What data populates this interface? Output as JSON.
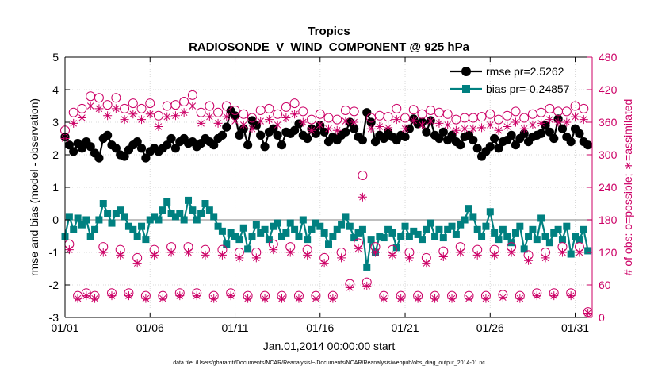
{
  "chart_data": {
    "type": "line",
    "title": "Tropics",
    "subtitle": "RADIOSONDE_V_WIND_COMPONENT @ 925 hPa",
    "xlabel": "Jan.01,2014 00:00:00 start",
    "ylabel": "rmse and bias (model - observation)",
    "ylabel_right": "# of obs: o=possible; ∗=assimilated",
    "footnote": "data file: /Users/gharamti/Documents/NCAR/Reanalysis/~/Documents/NCAR/Reanalysis/webpub/obs_diag_output_2014-01.nc",
    "xlim": [
      1,
      32
    ],
    "ylim": [
      -3,
      5
    ],
    "ylim_right": [
      0,
      480
    ],
    "x_ticks": [
      1,
      6,
      11,
      16,
      21,
      26,
      31
    ],
    "x_tick_labels": [
      "01/01",
      "01/06",
      "01/11",
      "01/16",
      "01/21",
      "01/26",
      "01/31"
    ],
    "y_ticks": [
      -3,
      -2,
      -1,
      0,
      1,
      2,
      3,
      4,
      5
    ],
    "y_tick_labels": [
      "-3",
      "-2",
      "-1",
      "0",
      "1",
      "2",
      "3",
      "4",
      "5"
    ],
    "y_ticks_right": [
      0,
      60,
      120,
      180,
      240,
      300,
      360,
      420,
      480
    ],
    "y_tick_labels_right": [
      "0",
      "60",
      "120",
      "180",
      "240",
      "300",
      "360",
      "420",
      "480"
    ],
    "grid": true,
    "zero_line": true,
    "colors": {
      "rmse": "#000000",
      "bias": "#008080",
      "obs": "#cc0066",
      "zero": "#aaaaaa",
      "grid": "#d9d9d9"
    },
    "series": [
      {
        "name": "rmse",
        "legend": "rmse pr=2.5262",
        "color": "#000000",
        "marker": "circle",
        "x": [
          1.0,
          1.25,
          1.5,
          1.75,
          2.0,
          2.25,
          2.5,
          2.75,
          3.0,
          3.25,
          3.5,
          3.75,
          4.0,
          4.25,
          4.5,
          4.75,
          5.0,
          5.25,
          5.5,
          5.75,
          6.0,
          6.25,
          6.5,
          6.75,
          7.0,
          7.25,
          7.5,
          7.75,
          8.0,
          8.25,
          8.5,
          8.75,
          9.0,
          9.25,
          9.5,
          9.75,
          10.0,
          10.25,
          10.5,
          10.75,
          11.0,
          11.25,
          11.5,
          11.75,
          12.0,
          12.25,
          12.5,
          12.75,
          13.0,
          13.25,
          13.5,
          13.75,
          14.0,
          14.25,
          14.5,
          14.75,
          15.0,
          15.25,
          15.5,
          15.75,
          16.0,
          16.25,
          16.5,
          16.75,
          17.0,
          17.25,
          17.5,
          17.75,
          18.0,
          18.25,
          18.5,
          18.75,
          19.0,
          19.25,
          19.5,
          19.75,
          20.0,
          20.25,
          20.5,
          20.75,
          21.0,
          21.25,
          21.5,
          21.75,
          22.0,
          22.25,
          22.5,
          22.75,
          23.0,
          23.25,
          23.5,
          23.75,
          24.0,
          24.25,
          24.5,
          24.75,
          25.0,
          25.25,
          25.5,
          25.75,
          26.0,
          26.25,
          26.5,
          26.75,
          27.0,
          27.25,
          27.5,
          27.75,
          28.0,
          28.25,
          28.5,
          28.75,
          29.0,
          29.25,
          29.5,
          29.75,
          30.0,
          30.25,
          30.5,
          30.75,
          31.0,
          31.25,
          31.5,
          31.75
        ],
        "values": [
          2.55,
          2.3,
          2.1,
          2.35,
          2.2,
          2.4,
          2.25,
          2.05,
          1.9,
          2.5,
          2.6,
          2.3,
          2.2,
          2.0,
          1.95,
          2.15,
          2.3,
          2.4,
          2.2,
          1.9,
          2.1,
          2.2,
          2.1,
          2.2,
          2.3,
          2.5,
          2.2,
          2.4,
          2.5,
          2.35,
          2.4,
          2.25,
          2.35,
          2.5,
          2.4,
          2.3,
          2.5,
          2.6,
          2.85,
          3.35,
          3.2,
          2.6,
          2.8,
          2.3,
          3.05,
          2.9,
          2.6,
          2.25,
          2.7,
          2.8,
          2.6,
          2.3,
          2.7,
          2.65,
          2.75,
          2.95,
          2.6,
          2.5,
          2.8,
          2.65,
          2.9,
          2.7,
          2.4,
          2.55,
          2.45,
          2.6,
          2.7,
          3.0,
          2.8,
          2.55,
          2.45,
          3.3,
          3.0,
          2.4,
          2.6,
          2.5,
          2.7,
          2.55,
          2.45,
          2.6,
          2.55,
          2.8,
          3.1,
          2.95,
          3.0,
          2.7,
          3.05,
          2.6,
          2.5,
          2.7,
          2.45,
          2.6,
          2.4,
          2.3,
          2.55,
          2.6,
          2.45,
          2.2,
          1.95,
          2.1,
          2.25,
          2.5,
          2.2,
          2.4,
          2.45,
          2.6,
          2.3,
          2.5,
          2.65,
          2.4,
          2.55,
          2.6,
          2.65,
          2.9,
          2.7,
          2.5,
          3.1,
          2.8,
          2.55,
          2.4,
          2.8,
          2.65,
          2.4,
          2.3
        ]
      },
      {
        "name": "bias",
        "legend": "bias pr=-0.24857",
        "color": "#008080",
        "marker": "square",
        "x": [
          1.0,
          1.25,
          1.5,
          1.75,
          2.0,
          2.25,
          2.5,
          2.75,
          3.0,
          3.25,
          3.5,
          3.75,
          4.0,
          4.25,
          4.5,
          4.75,
          5.0,
          5.25,
          5.5,
          5.75,
          6.0,
          6.25,
          6.5,
          6.75,
          7.0,
          7.25,
          7.5,
          7.75,
          8.0,
          8.25,
          8.5,
          8.75,
          9.0,
          9.25,
          9.5,
          9.75,
          10.0,
          10.25,
          10.5,
          10.75,
          11.0,
          11.25,
          11.5,
          11.75,
          12.0,
          12.25,
          12.5,
          12.75,
          13.0,
          13.25,
          13.5,
          13.75,
          14.0,
          14.25,
          14.5,
          14.75,
          15.0,
          15.25,
          15.5,
          15.75,
          16.0,
          16.25,
          16.5,
          16.75,
          17.0,
          17.25,
          17.5,
          17.75,
          18.0,
          18.25,
          18.5,
          18.75,
          19.0,
          19.25,
          19.5,
          19.75,
          20.0,
          20.25,
          20.5,
          20.75,
          21.0,
          21.25,
          21.5,
          21.75,
          22.0,
          22.25,
          22.5,
          22.75,
          23.0,
          23.25,
          23.5,
          23.75,
          24.0,
          24.25,
          24.5,
          24.75,
          25.0,
          25.25,
          25.5,
          25.75,
          26.0,
          26.25,
          26.5,
          26.75,
          27.0,
          27.25,
          27.5,
          27.75,
          28.0,
          28.25,
          28.5,
          28.75,
          29.0,
          29.25,
          29.5,
          29.75,
          30.0,
          30.25,
          30.5,
          30.75,
          31.0,
          31.25,
          31.5,
          31.75
        ],
        "values": [
          -0.5,
          0.1,
          -0.3,
          0.05,
          -0.15,
          0.0,
          -0.5,
          -0.3,
          0.0,
          0.5,
          0.2,
          -0.1,
          0.2,
          0.3,
          0.1,
          -0.2,
          -0.3,
          -0.5,
          -0.2,
          -0.6,
          0.0,
          0.1,
          0.0,
          0.3,
          0.55,
          0.2,
          0.1,
          0.2,
          0.0,
          0.6,
          0.3,
          0.0,
          0.2,
          0.5,
          0.3,
          0.1,
          -0.2,
          -0.35,
          -0.75,
          -0.4,
          -0.5,
          -0.6,
          -0.25,
          -0.9,
          -0.5,
          -0.15,
          -0.4,
          -0.3,
          -0.6,
          -0.2,
          -0.1,
          -0.5,
          -0.4,
          -0.1,
          -0.3,
          -0.5,
          0.0,
          -0.6,
          -0.3,
          -0.1,
          -0.2,
          -0.4,
          -0.75,
          -0.5,
          -0.3,
          -0.15,
          0.1,
          -0.2,
          -0.55,
          -0.4,
          -0.3,
          -1.45,
          -0.6,
          -1.0,
          -0.5,
          -0.55,
          -0.3,
          -0.4,
          -0.85,
          -0.5,
          -0.2,
          -0.5,
          -0.35,
          -0.45,
          -0.6,
          -0.3,
          -0.1,
          -0.5,
          -0.3,
          -0.55,
          -0.3,
          -0.2,
          -0.45,
          -0.15,
          0.0,
          0.35,
          0.1,
          -0.3,
          -0.5,
          -0.2,
          0.25,
          -0.4,
          -0.6,
          -0.3,
          -0.5,
          -0.7,
          -0.4,
          -0.2,
          -0.9,
          -0.5,
          -0.3,
          -0.6,
          0.05,
          -0.5,
          -0.7,
          -0.4,
          -0.3,
          -0.6,
          -0.2,
          -1.05,
          -0.5,
          -0.6,
          -0.3,
          -0.95
        ]
      },
      {
        "name": "obs_possible",
        "legend": "",
        "color": "#cc0066",
        "marker": "open-circle",
        "x": [
          1.0,
          1.25,
          1.5,
          1.75,
          2.0,
          2.25,
          2.5,
          2.75,
          3.0,
          3.25,
          3.5,
          3.75,
          4.0,
          4.25,
          4.5,
          4.75,
          5.0,
          5.25,
          5.5,
          5.75,
          6.0,
          6.25,
          6.5,
          6.75,
          7.0,
          7.25,
          7.5,
          7.75,
          8.0,
          8.25,
          8.5,
          8.75,
          9.0,
          9.25,
          9.5,
          9.75,
          10.0,
          10.25,
          10.5,
          10.75,
          11.0,
          11.25,
          11.5,
          11.75,
          12.0,
          12.25,
          12.5,
          12.75,
          13.0,
          13.25,
          13.5,
          13.75,
          14.0,
          14.25,
          14.5,
          14.75,
          15.0,
          15.25,
          15.5,
          15.75,
          16.0,
          16.25,
          16.5,
          16.75,
          17.0,
          17.25,
          17.5,
          17.75,
          18.0,
          18.25,
          18.5,
          18.75,
          19.0,
          19.25,
          19.5,
          19.75,
          20.0,
          20.25,
          20.5,
          20.75,
          21.0,
          21.25,
          21.5,
          21.75,
          22.0,
          22.25,
          22.5,
          22.75,
          23.0,
          23.25,
          23.5,
          23.75,
          24.0,
          24.25,
          24.5,
          24.75,
          25.0,
          25.25,
          25.5,
          25.75,
          26.0,
          26.25,
          26.5,
          26.75,
          27.0,
          27.25,
          27.5,
          27.75,
          28.0,
          28.25,
          28.5,
          28.75,
          29.0,
          29.25,
          29.5,
          29.75,
          30.0,
          30.25,
          30.5,
          30.75,
          31.0,
          31.25,
          31.5,
          31.75
        ],
        "values": [
          345,
          135,
          378,
          40,
          385,
          45,
          408,
          40,
          405,
          130,
          392,
          45,
          405,
          125,
          385,
          45,
          395,
          110,
          385,
          40,
          395,
          125,
          372,
          40,
          390,
          130,
          392,
          45,
          398,
          130,
          410,
          45,
          378,
          125,
          390,
          40,
          378,
          125,
          390,
          45,
          382,
          120,
          375,
          40,
          368,
          120,
          382,
          40,
          385,
          135,
          375,
          40,
          388,
          130,
          395,
          40,
          380,
          125,
          365,
          40,
          375,
          110,
          368,
          40,
          365,
          120,
          382,
          62,
          380,
          137,
          262,
          65,
          368,
          130,
          372,
          40,
          370,
          125,
          385,
          40,
          368,
          120,
          383,
          40,
          375,
          110,
          382,
          40,
          378,
          122,
          375,
          40,
          365,
          130,
          368,
          40,
          368,
          125,
          370,
          40,
          375,
          125,
          365,
          42,
          372,
          130,
          380,
          40,
          368,
          115,
          375,
          45,
          378,
          120,
          385,
          45,
          380,
          130,
          380,
          45,
          390,
          130,
          385,
          10
        ]
      },
      {
        "name": "obs_assimilated",
        "legend": "",
        "color": "#cc0066",
        "marker": "asterisk",
        "x": [
          1.0,
          1.25,
          1.5,
          1.75,
          2.0,
          2.25,
          2.5,
          2.75,
          3.0,
          3.25,
          3.5,
          3.75,
          4.0,
          4.25,
          4.5,
          4.75,
          5.0,
          5.25,
          5.5,
          5.75,
          6.0,
          6.25,
          6.5,
          6.75,
          7.0,
          7.25,
          7.5,
          7.75,
          8.0,
          8.25,
          8.5,
          8.75,
          9.0,
          9.25,
          9.5,
          9.75,
          10.0,
          10.25,
          10.5,
          10.75,
          11.0,
          11.25,
          11.5,
          11.75,
          12.0,
          12.25,
          12.5,
          12.75,
          13.0,
          13.25,
          13.5,
          13.75,
          14.0,
          14.25,
          14.5,
          14.75,
          15.0,
          15.25,
          15.5,
          15.75,
          16.0,
          16.25,
          16.5,
          16.75,
          17.0,
          17.25,
          17.5,
          17.75,
          18.0,
          18.25,
          18.5,
          18.75,
          19.0,
          19.25,
          19.5,
          19.75,
          20.0,
          20.25,
          20.5,
          20.75,
          21.0,
          21.25,
          21.5,
          21.75,
          22.0,
          22.25,
          22.5,
          22.75,
          23.0,
          23.25,
          23.5,
          23.75,
          24.0,
          24.25,
          24.5,
          24.75,
          25.0,
          25.25,
          25.5,
          25.75,
          26.0,
          26.25,
          26.5,
          26.75,
          27.0,
          27.25,
          27.5,
          27.75,
          28.0,
          28.25,
          28.5,
          28.75,
          29.0,
          29.25,
          29.5,
          29.75,
          30.0,
          30.25,
          30.5,
          30.75,
          31.0,
          31.25,
          31.5,
          31.75
        ],
        "values": [
          330,
          125,
          358,
          35,
          368,
          40,
          390,
          35,
          385,
          120,
          372,
          40,
          385,
          115,
          365,
          40,
          375,
          100,
          365,
          35,
          375,
          115,
          352,
          35,
          370,
          120,
          372,
          40,
          378,
          120,
          390,
          40,
          358,
          115,
          370,
          35,
          358,
          115,
          370,
          40,
          362,
          110,
          355,
          35,
          348,
          110,
          362,
          35,
          365,
          125,
          355,
          35,
          368,
          120,
          375,
          35,
          360,
          115,
          345,
          35,
          355,
          100,
          348,
          35,
          345,
          110,
          362,
          55,
          360,
          127,
          222,
          58,
          348,
          120,
          352,
          35,
          350,
          115,
          365,
          35,
          348,
          110,
          363,
          35,
          355,
          100,
          362,
          35,
          358,
          112,
          355,
          35,
          345,
          120,
          348,
          35,
          348,
          115,
          350,
          35,
          355,
          115,
          345,
          37,
          352,
          120,
          360,
          35,
          348,
          105,
          355,
          40,
          358,
          110,
          365,
          40,
          360,
          120,
          360,
          40,
          370,
          120,
          365,
          8
        ]
      }
    ]
  }
}
